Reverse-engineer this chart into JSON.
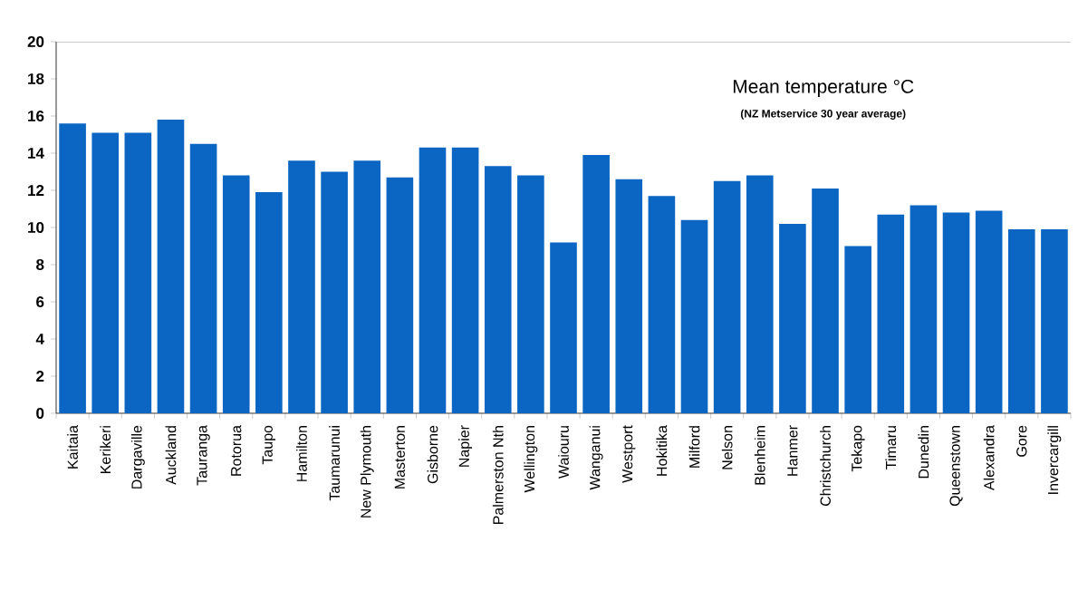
{
  "chart_data": {
    "type": "bar",
    "title": "Mean temperature °C",
    "subtitle": "(NZ Metservice 30 year average)",
    "categories": [
      "Kaitaia",
      "Kerikeri",
      "Dargaville",
      "Auckland",
      "Tauranga",
      "Rotorua",
      "Taupo",
      "Hamilton",
      "Taumarunui",
      "New Plymouth",
      "Masterton",
      "Gisborne",
      "Napier",
      "Palmerston Nth",
      "Wellington",
      "Waiouru",
      "Wanganui",
      "Westport",
      "Hokitika",
      "Milford",
      "Nelson",
      "Blenheim",
      "Hanmer",
      "Christchurch",
      "Tekapo",
      "Timaru",
      "Dunedin",
      "Queenstown",
      "Alexandra",
      "Gore",
      "Invercargill"
    ],
    "values": [
      15.6,
      15.1,
      15.1,
      15.8,
      14.5,
      12.8,
      11.9,
      13.6,
      13.0,
      13.6,
      12.7,
      14.3,
      14.3,
      13.3,
      12.8,
      9.2,
      13.9,
      12.6,
      11.7,
      10.4,
      12.5,
      12.8,
      10.2,
      12.1,
      9.0,
      10.7,
      11.2,
      10.8,
      10.9,
      9.9,
      9.9
    ],
    "color": "#0a66c2",
    "ylim": [
      0,
      20
    ],
    "yticks": [
      0,
      2,
      4,
      6,
      8,
      10,
      12,
      14,
      16,
      18,
      20
    ],
    "grid": false
  }
}
